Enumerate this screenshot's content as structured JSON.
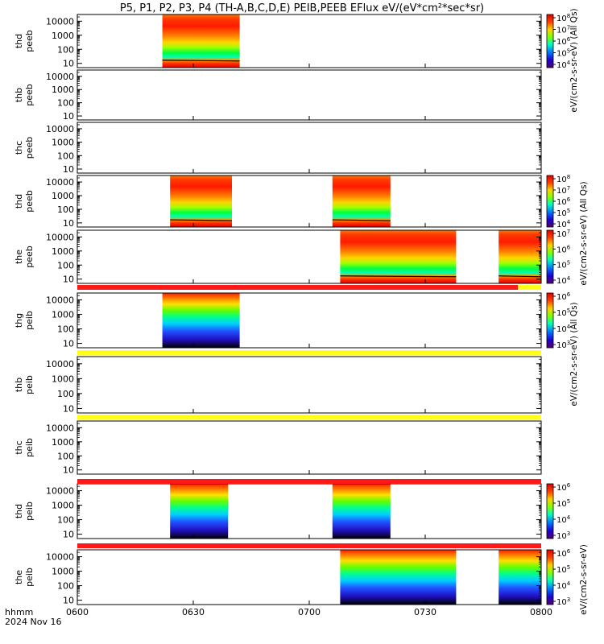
{
  "title": "P5, P1, P2, P3, P4 (TH-A,B,C,D,E) PEIB,PEEB EFlux eV/(eV*cm²*sec*sr)",
  "colorbar_labels": {
    "peeb": "eV/(cm2-s-sr-eV) (All Qs)",
    "peib": "eV/(cm2-s-sr-eV) (All Qs)",
    "peib_plain": "eV/(cm2-s-sr-eV)"
  },
  "x_axis": {
    "ticks": [
      "0600",
      "0630",
      "0700",
      "0730",
      "0800"
    ],
    "label_line1": "hhmm",
    "label_line2": "2024 Nov 16"
  },
  "y_tick_labels": [
    "10000",
    "1000",
    "100",
    "10"
  ],
  "colors": {
    "red_bar": "#ff1a1a",
    "yellow_bar": "#ffff1a",
    "frame": "#000000"
  },
  "chart_data": {
    "type": "heatmap",
    "x_unit": "UT hhmm",
    "x_range": [
      "06:00",
      "08:00"
    ],
    "y_scale": "log",
    "y_range": [
      5,
      30000
    ],
    "colormap": "rainbow (purple-blue-cyan-green-yellow-red)",
    "panels": [
      {
        "probe": "thd",
        "instrument": "peeb",
        "intervals": [
          [
            "06:22",
            "06:42"
          ]
        ],
        "colorbar": {
          "ticks": [
            "10^8",
            "10^7",
            "10^6",
            "10^5",
            "10^4"
          ]
        }
      },
      {
        "probe": "thb",
        "instrument": "peeb",
        "intervals": []
      },
      {
        "probe": "thc",
        "instrument": "peeb",
        "intervals": []
      },
      {
        "probe": "thd",
        "instrument": "peeb",
        "intervals": [
          [
            "06:24",
            "06:40"
          ],
          [
            "07:06",
            "07:21"
          ]
        ],
        "colorbar": {
          "ticks": [
            "10^8",
            "10^7",
            "10^6",
            "10^5",
            "10^4"
          ]
        }
      },
      {
        "probe": "the",
        "instrument": "peeb",
        "intervals": [
          [
            "07:08",
            "07:38"
          ],
          [
            "07:49",
            "08:00"
          ]
        ],
        "colorbar": {
          "ticks": [
            "10^7",
            "10^6",
            "10^5",
            "10^4"
          ]
        }
      },
      {
        "probe": "thg",
        "instrument": "peib",
        "intervals": [
          [
            "06:22",
            "06:42"
          ]
        ],
        "colorbar": {
          "ticks": [
            "10^6",
            "10^5",
            "10^4",
            "10^3"
          ]
        }
      },
      {
        "probe": "thb",
        "instrument": "peib",
        "intervals": []
      },
      {
        "probe": "thc",
        "instrument": "peib",
        "intervals": []
      },
      {
        "probe": "thd",
        "instrument": "peib",
        "intervals": [
          [
            "06:24",
            "06:39"
          ],
          [
            "07:06",
            "07:21"
          ]
        ],
        "colorbar": {
          "ticks": [
            "10^6",
            "10^5",
            "10^4",
            "10^3"
          ]
        }
      },
      {
        "probe": "the",
        "instrument": "peib",
        "intervals": [
          [
            "07:08",
            "07:38"
          ],
          [
            "07:49",
            "08:00"
          ]
        ],
        "colorbar": {
          "ticks": [
            "10^6",
            "10^5",
            "10^4",
            "10^3"
          ]
        }
      }
    ],
    "status_bars": [
      {
        "after_panel": 4,
        "color": "red",
        "extent": [
          "06:00",
          "07:54"
        ],
        "then": "yellow"
      },
      {
        "after_panel": 5,
        "color": "yellow",
        "extent": [
          "06:00",
          "08:00"
        ]
      },
      {
        "after_panel": 6,
        "color": "yellow",
        "extent": [
          "06:00",
          "08:00"
        ]
      },
      {
        "after_panel": 7,
        "color": "red",
        "extent": [
          "06:00",
          "08:00"
        ]
      },
      {
        "after_panel": 8,
        "color": "red",
        "extent": [
          "06:00",
          "08:00"
        ]
      }
    ]
  }
}
